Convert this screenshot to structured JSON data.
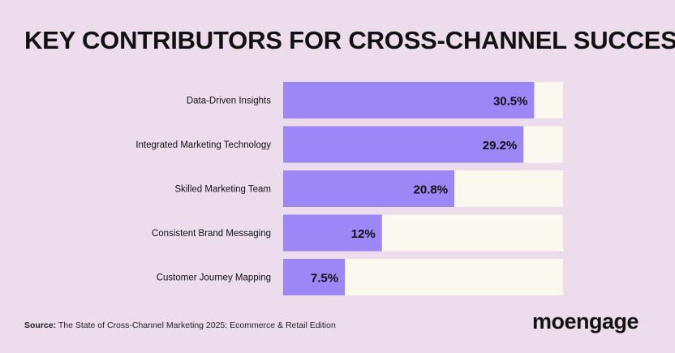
{
  "title": "KEY CONTRIBUTORS FOR CROSS-CHANNEL SUCCESS",
  "source": {
    "label": "Source:",
    "text": "The State of Cross-Channel Marketing 2025: Ecommerce & Retail Edition"
  },
  "logo": "moengage",
  "colors": {
    "background": "#ecdcec",
    "bar": "#9b87f5",
    "track": "#fbf8ef",
    "text": "#111111"
  },
  "chart_data": {
    "type": "bar",
    "orientation": "horizontal",
    "categories": [
      "Data-Driven Insights",
      "Integrated Marketing Technology",
      "Skilled Marketing Team",
      "Consistent Brand Messaging",
      "Customer Journey Mapping"
    ],
    "values": [
      30.5,
      29.2,
      20.8,
      12,
      7.5
    ],
    "value_labels": [
      "30.5%",
      "29.2%",
      "20.8%",
      "12%",
      "7.5%"
    ],
    "xlim": [
      0,
      34
    ],
    "title": "KEY CONTRIBUTORS FOR CROSS-CHANNEL SUCCESS",
    "xlabel": "",
    "ylabel": "",
    "grid": false
  }
}
